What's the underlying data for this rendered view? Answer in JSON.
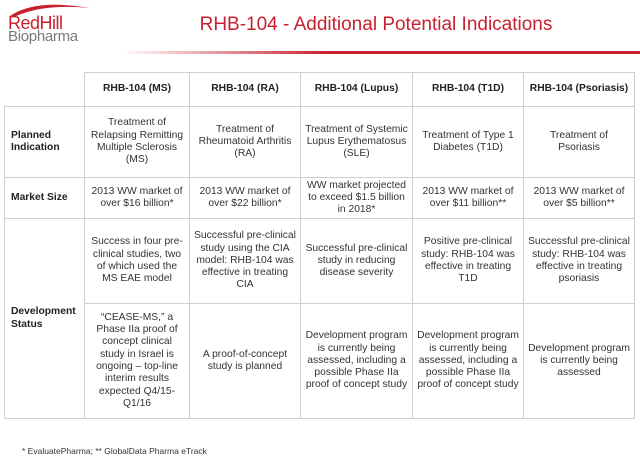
{
  "logo": {
    "line1": "RedHill",
    "line2": "Biopharma"
  },
  "title": "RHB-104 - Additional Potential Indications",
  "columns": [
    "RHB-104 (MS)",
    "RHB-104 (RA)",
    "RHB-104 (Lupus)",
    "RHB-104 (T1D)",
    "RHB-104 (Psoriasis)"
  ],
  "rows": {
    "planned_indication": {
      "label": "Planned Indication",
      "cells": [
        "Treatment of Relapsing Remitting Multiple Sclerosis (MS)",
        "Treatment of Rheumatoid Arthritis (RA)",
        "Treatment of Systemic Lupus Erythematosus (SLE)",
        "Treatment of Type 1 Diabetes (T1D)",
        "Treatment of Psoriasis"
      ]
    },
    "market_size": {
      "label": "Market Size",
      "cells": [
        "2013 WW market of over $16 billion*",
        "2013 WW market of over $22 billion*",
        "WW market projected to exceed $1.5 billion in 2018*",
        "2013 WW market of over $11 billion**",
        "2013 WW market of over $5 billion**"
      ]
    },
    "development_status": {
      "label": "Development Status",
      "row1": [
        "Success in four pre-clinical studies, two of which used the MS EAE model",
        "Successful pre-clinical study using the CIA model: RHB-104 was effective in treating CIA",
        "Successful pre-clinical study in reducing disease severity",
        "Positive pre-clinical study: RHB-104 was effective in treating T1D",
        "Successful pre-clinical study: RHB-104 was effective in treating psoriasis"
      ],
      "row2": [
        "“CEASE-MS,” a Phase IIa proof of concept clinical study in Israel is ongoing – top-line interim results expected Q4/15-Q1/16",
        "A proof-of-concept study is planned",
        "Development program is currently being assessed, including a possible Phase IIa proof of concept study",
        "Development program is currently being assessed, including a possible Phase IIa proof of concept study",
        "Development program is currently being assessed"
      ]
    }
  },
  "footnote": "*  EvaluatePharma; ** GlobalData Pharma eTrack",
  "colors": {
    "brand_red": "#c8202e",
    "grid_line": "#cfcfcf",
    "text": "#333333"
  }
}
